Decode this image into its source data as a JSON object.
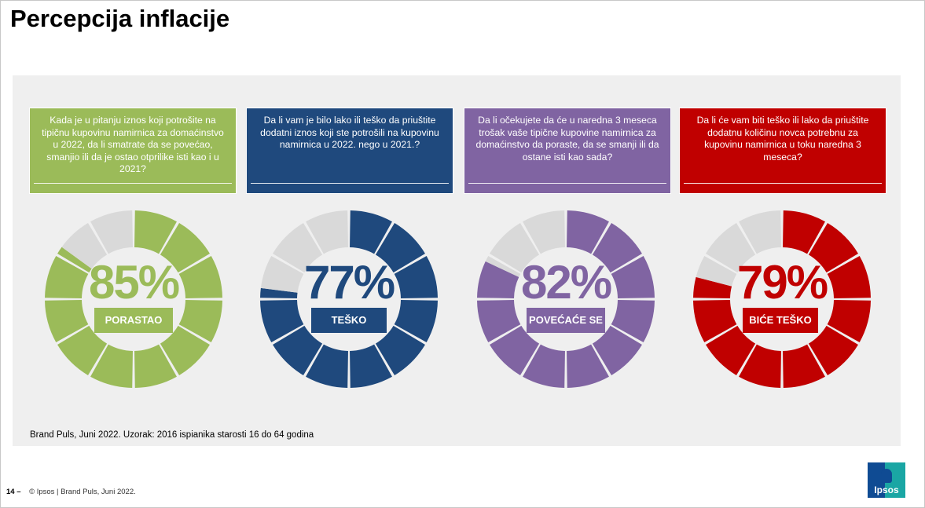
{
  "page": {
    "title": "Percepcija inflacije",
    "source_note": "Brand Puls, Juni 2022. Uzorak: 2016 ispianika starosti 16 do 64 godina",
    "page_number": "14 –",
    "copyright": "© Ipsos | Brand Puls, Juni 2022.",
    "logo_text": "Ipsos"
  },
  "colors": {
    "green": "#9bbb59",
    "blue": "#1f497d",
    "purple": "#8064a2",
    "red": "#c00000",
    "remainder": "#d9d9d9"
  },
  "cards": [
    {
      "question": "Kada je u pitanju iznos koji potrošite na tipičnu kupovinu namirnica za domaćinstvo u 2022, da li smatrate da se povećao, smanjio ili da je ostao otprilike isti kao i u 2021?",
      "percent_label": "85%",
      "label": "PORASTAO",
      "color_key": "green"
    },
    {
      "question": "Da li vam je bilo lako ili teško da priuštite dodatni iznos koji ste potrošili na kupovinu namirnica u 2022. nego u 2021.?",
      "percent_label": "77%",
      "label": "TEŠKO",
      "color_key": "blue"
    },
    {
      "question": "Da li očekujete da će u naredna 3 meseca trošak vaše tipične kupovine namirnica za domaćinstvo da poraste, da se smanji ili da ostane isti kao sada?",
      "percent_label": "82%",
      "label": "POVEĆAĆE SE",
      "color_key": "purple"
    },
    {
      "question": "Da li će vam biti teško ili lako da priuštite dodatnu količinu novca potrebnu za kupovinu namirnica u toku naredna 3 meseca?",
      "percent_label": "79%",
      "label": "BIĆE TEŠKO",
      "color_key": "red"
    }
  ],
  "chart_data": [
    {
      "type": "pie",
      "categories": [
        "PORASTAO"
      ],
      "values": [
        85
      ],
      "segments": 12
    },
    {
      "type": "pie",
      "categories": [
        "TEŠKO"
      ],
      "values": [
        77
      ],
      "segments": 12
    },
    {
      "type": "pie",
      "categories": [
        "POVEĆAĆE SE"
      ],
      "values": [
        82
      ],
      "segments": 12
    },
    {
      "type": "pie",
      "categories": [
        "BIĆE TEŠKO"
      ],
      "values": [
        79
      ],
      "segments": 12
    }
  ]
}
